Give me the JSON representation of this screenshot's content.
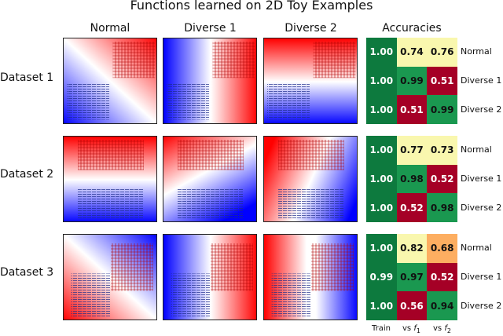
{
  "title": "Functions learned on 2D Toy Examples",
  "columns": [
    "Normal",
    "Diverse 1",
    "Diverse 2",
    "Accuracies"
  ],
  "datasets": [
    "Dataset 1",
    "Dataset 2",
    "Dataset 3"
  ],
  "accuracy_rows": [
    "Normal",
    "Diverse 1",
    "Diverse 2"
  ],
  "accuracy_cols": {
    "train": "Train",
    "vs_prefix": "vs",
    "f1": "f",
    "f1_sub": "1",
    "f2": "f",
    "f2_sub": "2"
  },
  "colors": {
    "train": "#0d7a3e",
    "good": "#1a9850",
    "mid": "#f9f7ae",
    "orange": "#fdae61",
    "bad": "#a50026",
    "field_red": "#ff0000",
    "field_blue": "#0000ff",
    "field_white": "#ffffff"
  },
  "chart_data": {
    "type": "heatmap",
    "title": "Accuracies",
    "row_labels": [
      "Normal",
      "Diverse 1",
      "Diverse 2"
    ],
    "col_labels": [
      "Train",
      "vs f1",
      "vs f2"
    ],
    "datasets": [
      {
        "name": "Dataset 1",
        "values": [
          [
            1.0,
            0.74,
            0.76
          ],
          [
            1.0,
            0.99,
            0.51
          ],
          [
            1.0,
            0.51,
            0.99
          ]
        ]
      },
      {
        "name": "Dataset 2",
        "values": [
          [
            1.0,
            0.77,
            0.73
          ],
          [
            1.0,
            0.98,
            0.52
          ],
          [
            1.0,
            0.52,
            0.98
          ]
        ]
      },
      {
        "name": "Dataset 3",
        "values": [
          [
            1.0,
            0.82,
            0.68
          ],
          [
            0.99,
            0.97,
            0.52
          ],
          [
            1.0,
            0.56,
            0.94
          ]
        ]
      }
    ]
  }
}
